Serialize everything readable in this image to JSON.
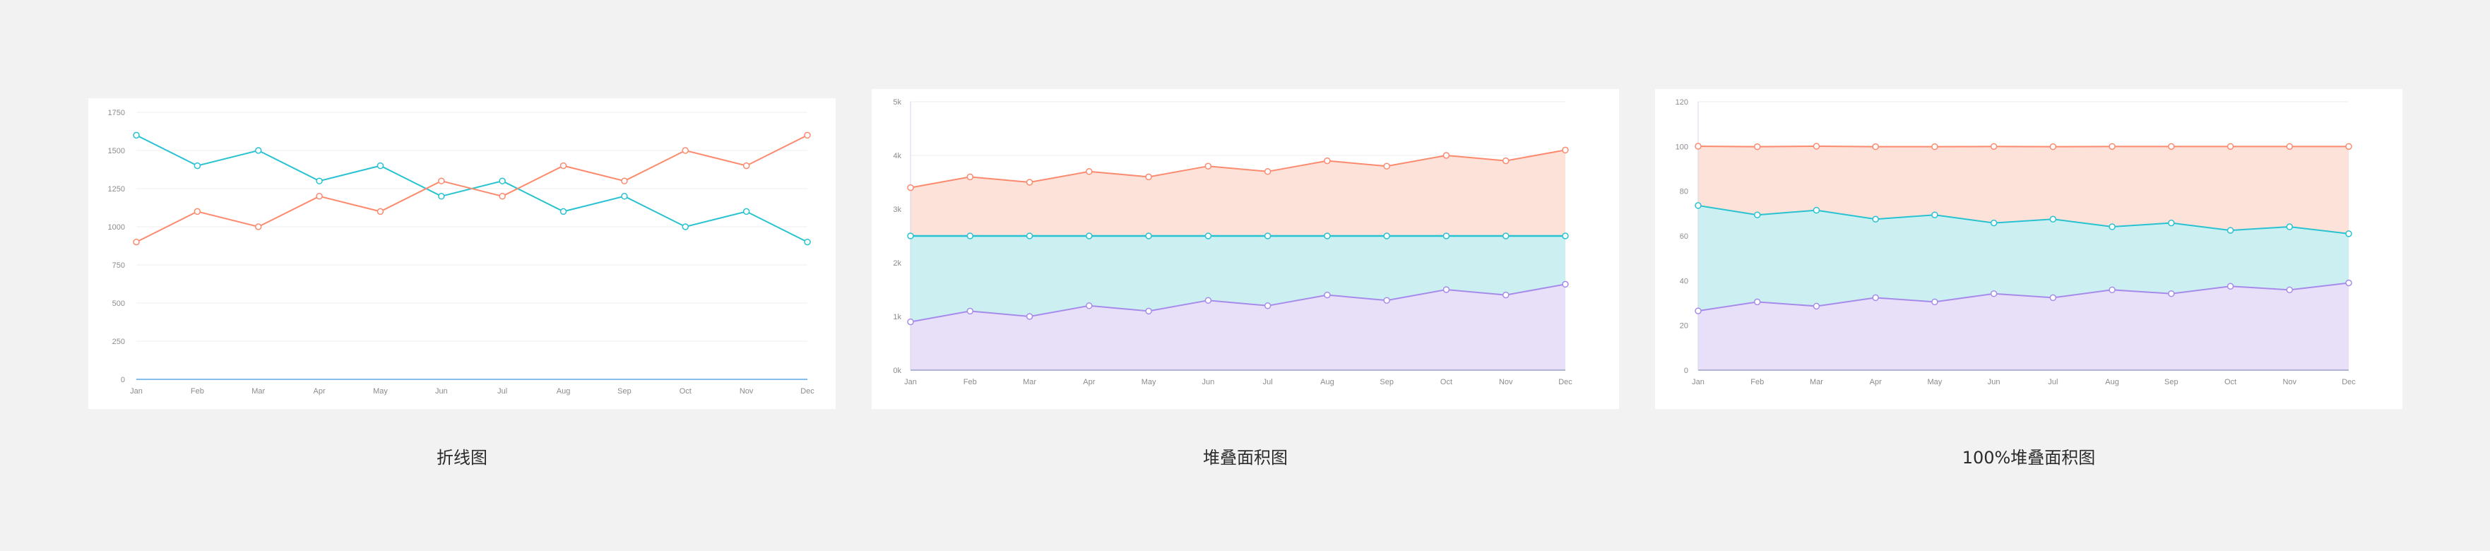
{
  "colors": {
    "orange": "#fb8a6e",
    "cyan": "#28c2d1",
    "purple": "#a78bea",
    "orange_fill": "#fde2da",
    "cyan_fill": "#ccf0f2",
    "purple_fill": "#e7e0f8",
    "grid": "#ececec",
    "axis": "#5aa9e6"
  },
  "captions": [
    "折线图",
    "堆叠面积图",
    "100%堆叠面积图"
  ],
  "chart_data": [
    {
      "type": "line",
      "categories": [
        "Jan",
        "Feb",
        "Mar",
        "Apr",
        "May",
        "Jun",
        "Jul",
        "Aug",
        "Sep",
        "Oct",
        "Nov",
        "Dec"
      ],
      "ylim": [
        0,
        1750
      ],
      "yticks": [
        "0",
        "250",
        "500",
        "750",
        "1000",
        "1250",
        "1500",
        "1750"
      ],
      "series": [
        {
          "color": "cyan",
          "values": [
            1600,
            1400,
            1500,
            1300,
            1400,
            1200,
            1300,
            1100,
            1200,
            1000,
            1100,
            900
          ]
        },
        {
          "color": "orange",
          "values": [
            900,
            1100,
            1000,
            1200,
            1100,
            1300,
            1200,
            1400,
            1300,
            1500,
            1400,
            1600
          ]
        }
      ]
    },
    {
      "type": "area",
      "stacked": true,
      "categories": [
        "Jan",
        "Feb",
        "Mar",
        "Apr",
        "May",
        "Jun",
        "Jul",
        "Aug",
        "Sep",
        "Oct",
        "Nov",
        "Dec"
      ],
      "ylim": [
        0,
        5000
      ],
      "yticks": [
        "0k",
        "1k",
        "2k",
        "3k",
        "4k",
        "5k"
      ],
      "series": [
        {
          "color": "purple",
          "values": [
            900,
            1100,
            1000,
            1200,
            1100,
            1300,
            1200,
            1400,
            1300,
            1500,
            1400,
            1600
          ]
        },
        {
          "color": "cyan",
          "values": [
            1600,
            1400,
            1500,
            1300,
            1400,
            1200,
            1300,
            1100,
            1200,
            1000,
            1100,
            900
          ]
        },
        {
          "color": "orange",
          "values": [
            900,
            1100,
            1000,
            1200,
            1100,
            1300,
            1200,
            1400,
            1300,
            1500,
            1400,
            1600
          ]
        }
      ]
    },
    {
      "type": "area",
      "stacked": "percent",
      "categories": [
        "Jan",
        "Feb",
        "Mar",
        "Apr",
        "May",
        "Jun",
        "Jul",
        "Aug",
        "Sep",
        "Oct",
        "Nov",
        "Dec"
      ],
      "ylim": [
        0,
        120
      ],
      "yticks": [
        "0",
        "20",
        "40",
        "60",
        "80",
        "100",
        "120"
      ],
      "series": [
        {
          "color": "purple",
          "values": [
            26.5,
            30.5,
            28.6,
            32.4,
            30.5,
            34.2,
            32.4,
            35.9,
            34.2,
            37.5,
            35.9,
            39.0
          ]
        },
        {
          "color": "cyan",
          "values": [
            47.1,
            38.9,
            42.9,
            35.1,
            38.9,
            31.6,
            35.1,
            28.2,
            31.6,
            25.0,
            28.2,
            22.0
          ]
        },
        {
          "color": "orange",
          "values": [
            26.5,
            30.5,
            28.6,
            32.4,
            30.5,
            34.2,
            32.4,
            35.9,
            34.2,
            37.5,
            35.9,
            39.0
          ]
        }
      ]
    }
  ]
}
